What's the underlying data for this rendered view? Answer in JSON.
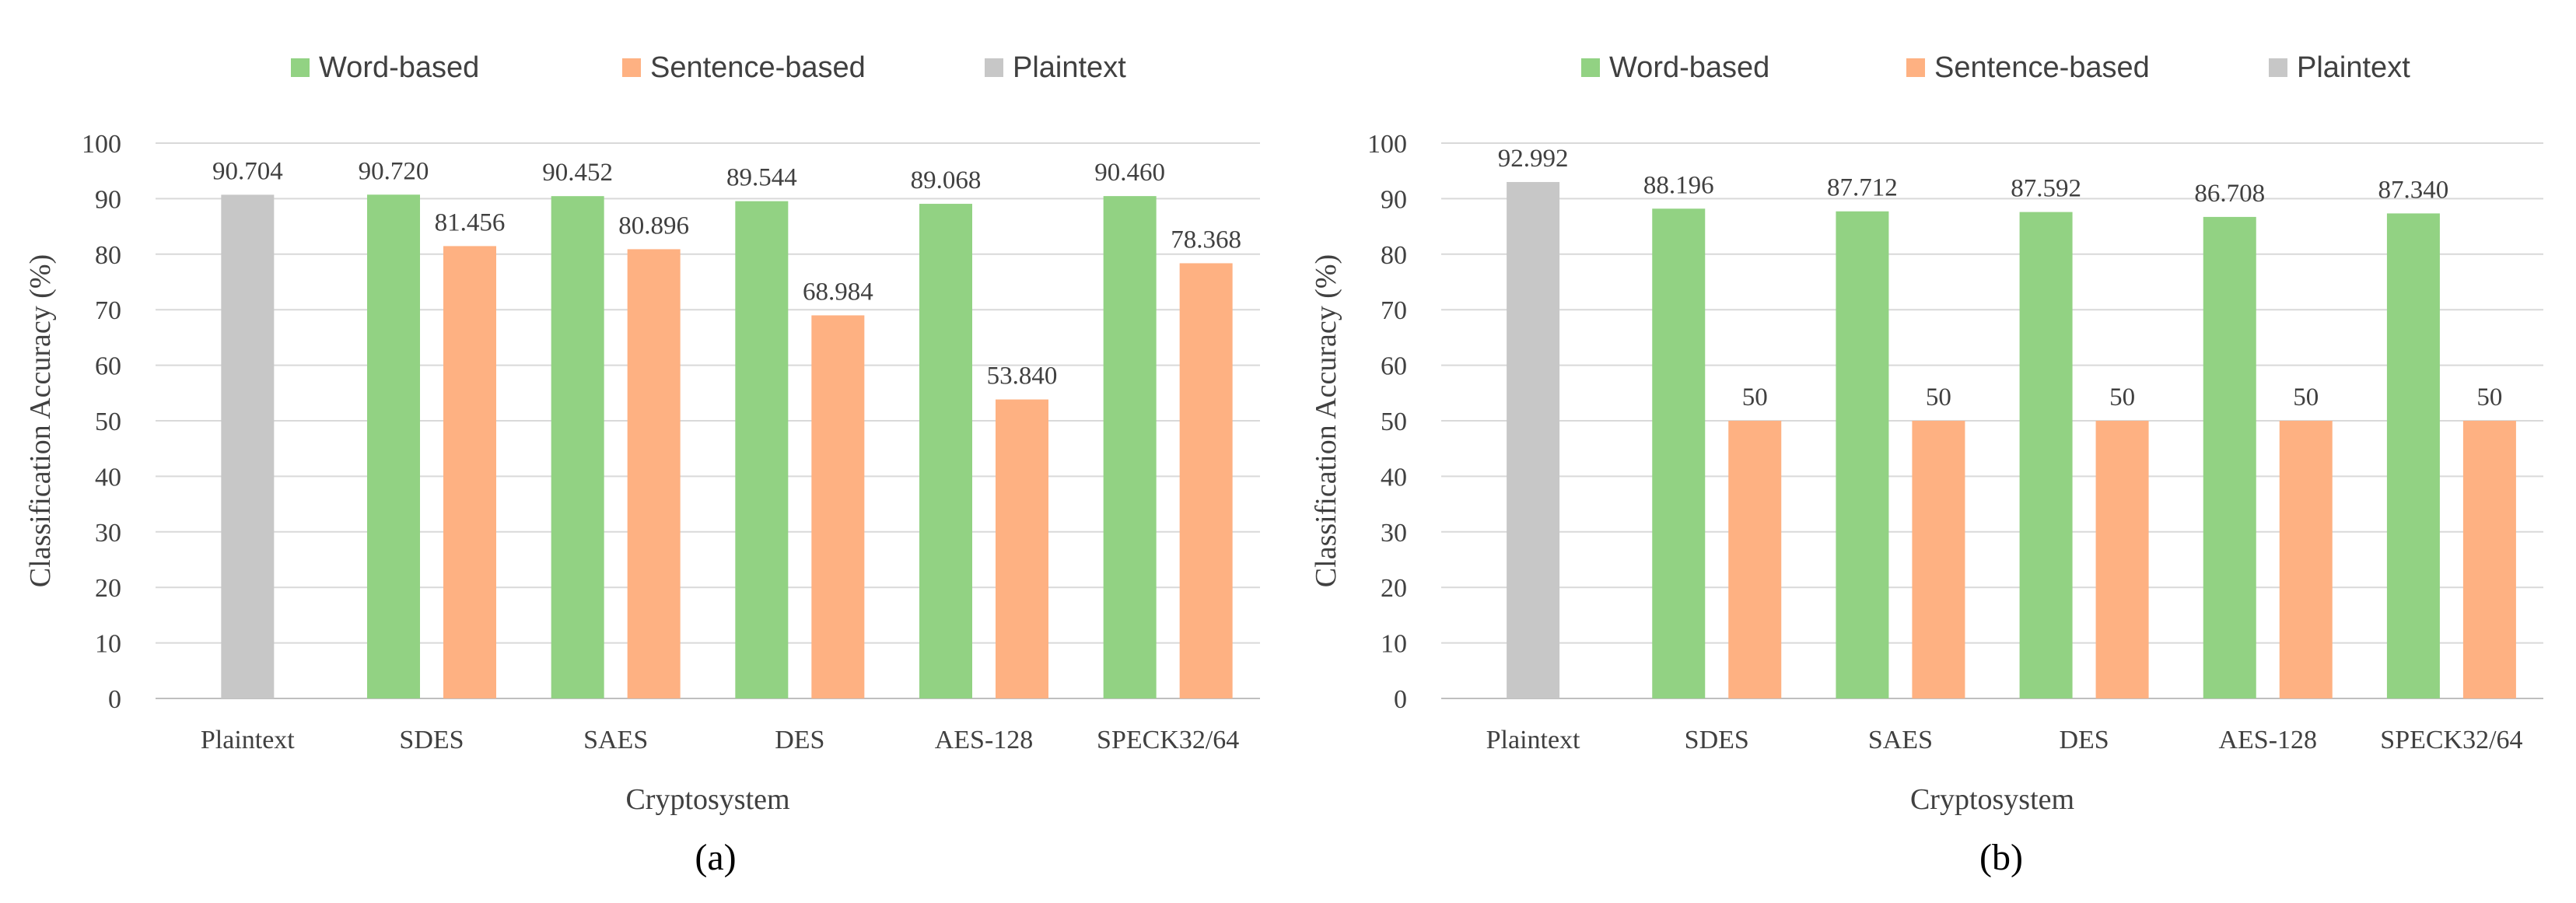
{
  "colors": {
    "word": "#92d283",
    "sentence": "#feb182",
    "plain": "#c7c7c7"
  },
  "chart_data": [
    {
      "type": "bar",
      "panel_label": "(a)",
      "xlabel": "Cryptosystem",
      "ylabel": "Classification Accuracy (%)",
      "ylim": [
        0,
        100
      ],
      "yticks": [
        "0",
        "10",
        "20",
        "30",
        "40",
        "50",
        "60",
        "70",
        "80",
        "90",
        "100"
      ],
      "grid": true,
      "legend_position": "top",
      "categories": [
        "Plaintext",
        "SDES",
        "SAES",
        "DES",
        "AES-128",
        "SPECK32/64"
      ],
      "series": [
        {
          "name": "Word-based",
          "color_key": "word",
          "values": [
            null,
            90.72,
            90.452,
            89.544,
            89.068,
            90.46
          ],
          "labels": [
            "",
            "90.720",
            "90.452",
            "89.544",
            "89.068",
            "90.460"
          ]
        },
        {
          "name": "Sentence-based",
          "color_key": "sentence",
          "values": [
            null,
            81.456,
            80.896,
            68.984,
            53.84,
            78.368
          ],
          "labels": [
            "",
            "81.456",
            "80.896",
            "68.984",
            "53.840",
            "78.368"
          ]
        },
        {
          "name": "Plaintext",
          "color_key": "plain",
          "values": [
            90.704,
            null,
            null,
            null,
            null,
            null
          ],
          "labels": [
            "90.704",
            "",
            "",
            "",
            "",
            ""
          ]
        }
      ]
    },
    {
      "type": "bar",
      "panel_label": "(b)",
      "xlabel": "Cryptosystem",
      "ylabel": "Classification Accuracy (%)",
      "ylim": [
        0,
        100
      ],
      "yticks": [
        "0",
        "10",
        "20",
        "30",
        "40",
        "50",
        "60",
        "70",
        "80",
        "90",
        "100"
      ],
      "grid": true,
      "legend_position": "top",
      "categories": [
        "Plaintext",
        "SDES",
        "SAES",
        "DES",
        "AES-128",
        "SPECK32/64"
      ],
      "series": [
        {
          "name": "Word-based",
          "color_key": "word",
          "values": [
            null,
            88.196,
            87.712,
            87.592,
            86.708,
            87.34
          ],
          "labels": [
            "",
            "88.196",
            "87.712",
            "87.592",
            "86.708",
            "87.340"
          ]
        },
        {
          "name": "Sentence-based",
          "color_key": "sentence",
          "values": [
            null,
            50,
            50,
            50,
            50,
            50
          ],
          "labels": [
            "",
            "50",
            "50",
            "50",
            "50",
            "50"
          ]
        },
        {
          "name": "Plaintext",
          "color_key": "plain",
          "values": [
            92.992,
            null,
            null,
            null,
            null,
            null
          ],
          "labels": [
            "92.992",
            "",
            "",
            "",
            "",
            ""
          ]
        }
      ]
    }
  ]
}
